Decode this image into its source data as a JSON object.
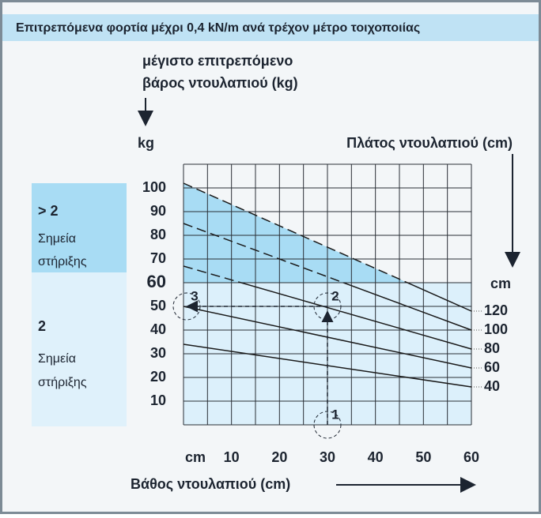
{
  "chart_data": {
    "type": "line",
    "title": "Επιτρεπόμενα φορτία μέχρι 0,4 kN/m ανά τρέχον μέτρο τοιχοποιίας",
    "y_axis_label": [
      "μέγιστο επιτρεπόμενο",
      "βάρος ντουλαπιού (kg)"
    ],
    "y_unit": "kg",
    "series_title": "Πλάτος ντουλαπιού (cm)",
    "series_unit": "cm",
    "x_axis_label": "Βάθος ντουλαπιού (cm)",
    "x": [
      0,
      60
    ],
    "series": [
      {
        "name": "120",
        "color": "#1a1a1a",
        "values": [
          102,
          48
        ]
      },
      {
        "name": "100",
        "color": "#1a1a1a",
        "values": [
          85,
          40
        ]
      },
      {
        "name": "80",
        "color": "#1a1a1a",
        "values": [
          67,
          32
        ]
      },
      {
        "name": "60",
        "color": "#1a1a1a",
        "values": [
          50,
          24
        ]
      },
      {
        "name": "40",
        "color": "#1a1a1a",
        "values": [
          34,
          16
        ]
      }
    ],
    "xlim": [
      0,
      60
    ],
    "ylim": [
      0,
      110
    ],
    "xticks": [
      {
        "value": 0,
        "label": "cm"
      },
      10,
      20,
      30,
      40,
      50,
      60
    ],
    "yticks": [
      10,
      20,
      30,
      40,
      50,
      60,
      70,
      80,
      90,
      100
    ],
    "xgrid": [
      0,
      5,
      10,
      15,
      20,
      25,
      30,
      35,
      40,
      45,
      50,
      55,
      60
    ],
    "ygrid": [
      0,
      10,
      20,
      30,
      40,
      50,
      60,
      70,
      80,
      90,
      100,
      110
    ],
    "threshold": 60,
    "zones": [
      {
        "label": "> 2",
        "text": [
          "Σημεία",
          "στήριξης"
        ]
      },
      {
        "label": "2",
        "text": [
          "Σημεία",
          "στήριξης"
        ]
      }
    ],
    "example": {
      "depth": 30,
      "weight": 50,
      "steps": [
        "1",
        "2",
        "3"
      ]
    }
  }
}
